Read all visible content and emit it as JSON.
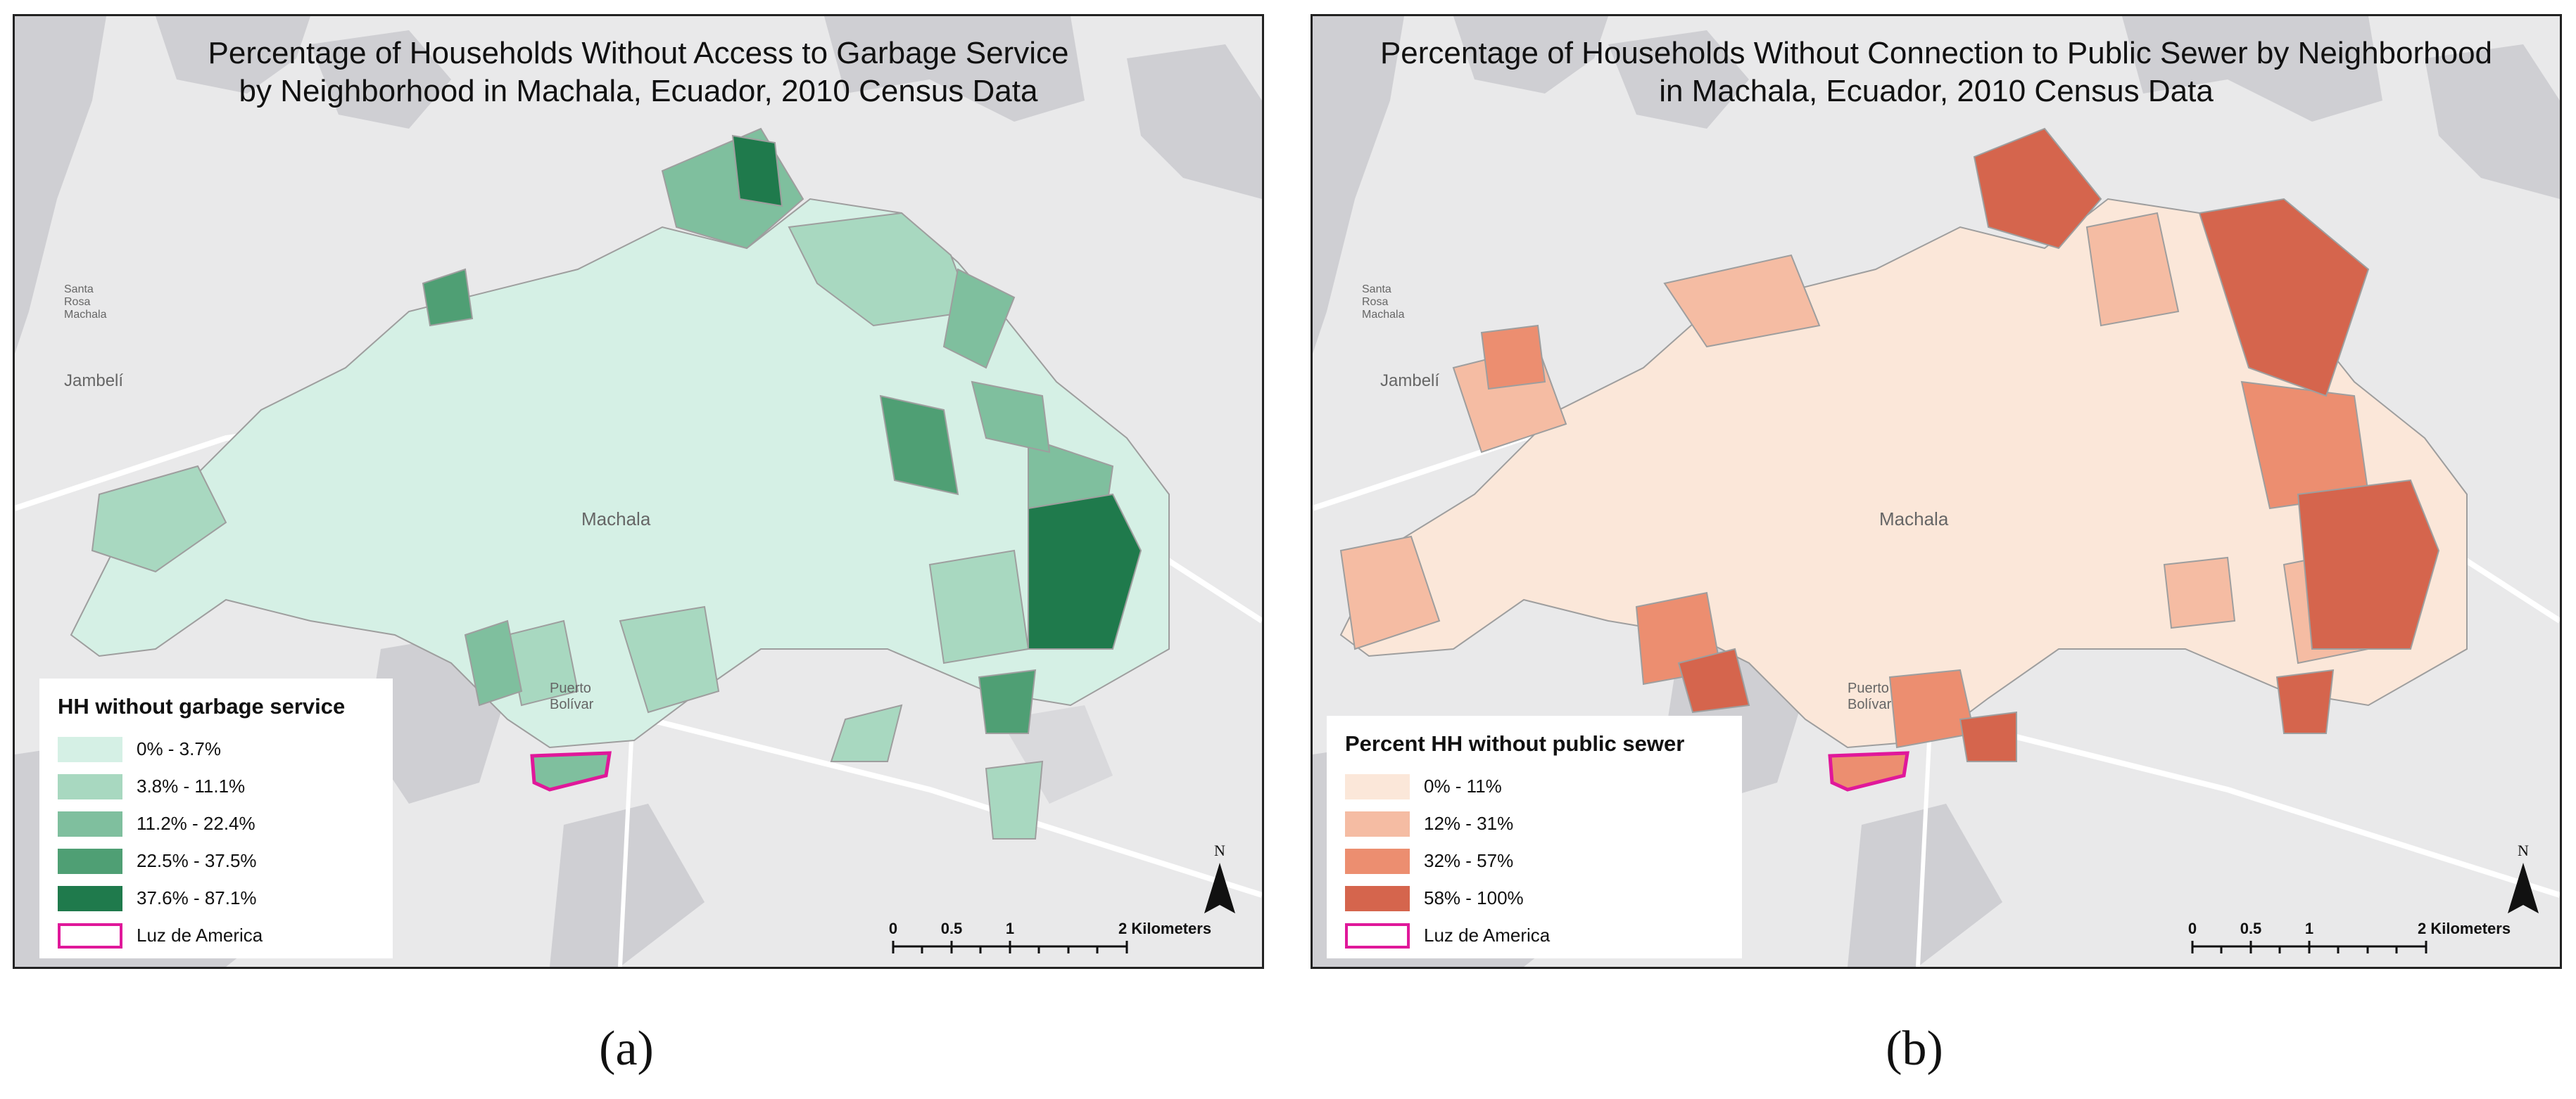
{
  "maps": [
    {
      "id": "a",
      "title_line1": "Percentage of Households Without Access to Garbage Service",
      "title_line2": "by Neighborhood in Machala, Ecuador, 2010 Census Data",
      "legend": {
        "title": "HH without garbage service",
        "classes": [
          {
            "label": "0% - 3.7%",
            "color": "#d5f0e5"
          },
          {
            "label": "3.8% - 11.1%",
            "color": "#a8d8c0"
          },
          {
            "label": "11.2% - 22.4%",
            "color": "#7fbf9e"
          },
          {
            "label": "22.5% - 37.5%",
            "color": "#4f9f74"
          },
          {
            "label": "37.6% - 87.1%",
            "color": "#1f7a4c"
          }
        ],
        "outline_label": "Luz de America",
        "outline_color": "#e0189a"
      },
      "places": {
        "city": "Machala",
        "jambeli": "Jambelí",
        "puerto": "Puerto Bolívar",
        "santa": "Santa Rosa Machala"
      },
      "scale": {
        "ticks": [
          "0",
          "0.5",
          "1",
          "2 Kilometers"
        ]
      },
      "north_label": "N",
      "caption": "(a)"
    },
    {
      "id": "b",
      "title_line1": "Percentage of Households Without Connection to Public Sewer by Neighborhood",
      "title_line2": "in Machala, Ecuador, 2010 Census Data",
      "legend": {
        "title": "Percent HH without public sewer",
        "classes": [
          {
            "label": "0% - 11%",
            "color": "#fbe7d9"
          },
          {
            "label": "12% - 31%",
            "color": "#f5bca3"
          },
          {
            "label": "32% - 57%",
            "color": "#ec8e70"
          },
          {
            "label": "58% - 100%",
            "color": "#d5654d"
          }
        ],
        "outline_label": "Luz de America",
        "outline_color": "#e0189a"
      },
      "places": {
        "city": "Machala",
        "jambeli": "Jambelí",
        "puerto": "Puerto Bolívar",
        "santa": "Santa Rosa Machala"
      },
      "scale": {
        "ticks": [
          "0",
          "0.5",
          "1",
          "2 Kilometers"
        ]
      },
      "north_label": "N",
      "caption": "(b)"
    }
  ]
}
